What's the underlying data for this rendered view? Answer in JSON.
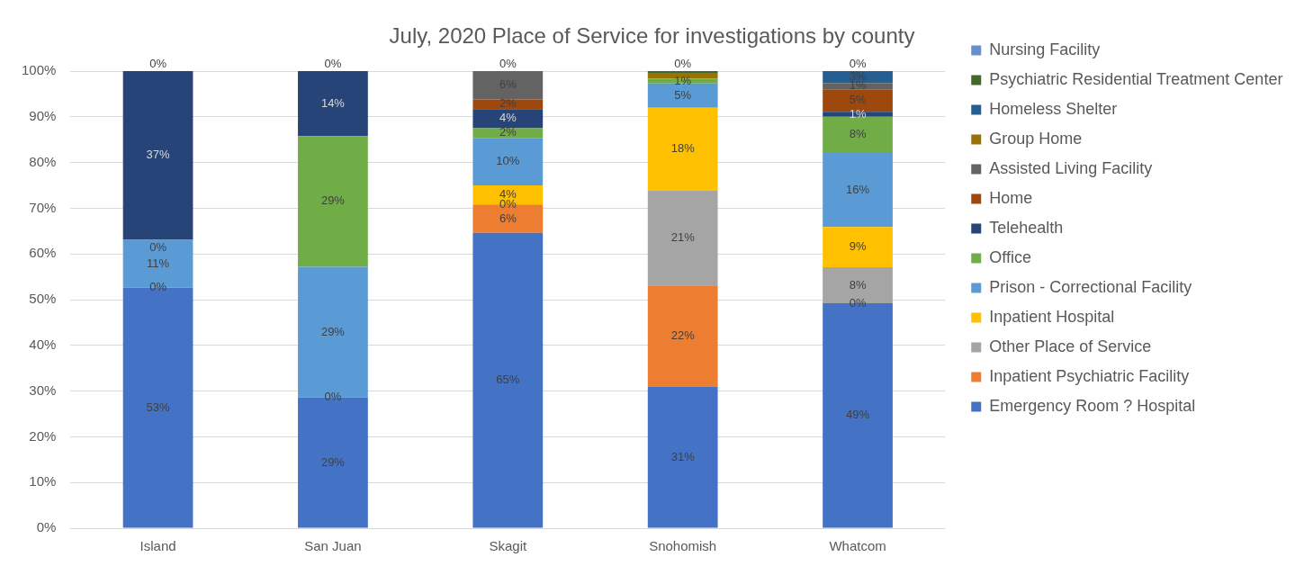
{
  "chart_data": {
    "type": "bar",
    "title": "July, 2020 Place of Service for investigations by county",
    "categories": [
      "Island",
      "San Juan",
      "Skagit",
      "Snohomish",
      "Whatcom"
    ],
    "stacked": true,
    "ylim": [
      0,
      100
    ],
    "yticks": [
      {
        "value": 0,
        "label": "0%"
      },
      {
        "value": 10,
        "label": "10%"
      },
      {
        "value": 20,
        "label": "20%"
      },
      {
        "value": 30,
        "label": "30%"
      },
      {
        "value": 40,
        "label": "40%"
      },
      {
        "value": 50,
        "label": "50%"
      },
      {
        "value": 60,
        "label": "60%"
      },
      {
        "value": 70,
        "label": "70%"
      },
      {
        "value": 80,
        "label": "80%"
      },
      {
        "value": 90,
        "label": "90%"
      },
      {
        "value": 100,
        "label": "100%"
      }
    ],
    "grid": "y",
    "legend": "right",
    "series": [
      {
        "name": "Emergency Room ? Hospital",
        "color": "#4472c4",
        "values": [
          52.6,
          28.6,
          64.6,
          31.0,
          49.2
        ],
        "value_labels": [
          "53%",
          "29%",
          "65%",
          "31%",
          "49%"
        ]
      },
      {
        "name": "Inpatient Psychiatric Facility",
        "color": "#ed7d31",
        "values": [
          0,
          0,
          6.2,
          22.1,
          0
        ],
        "value_labels": [
          null,
          null,
          "6%",
          "22%",
          null
        ]
      },
      {
        "name": "Other Place of Service",
        "color": "#a5a5a5",
        "values": [
          0,
          0,
          0,
          20.8,
          7.9
        ],
        "value_labels": [
          null,
          null,
          null,
          "21%",
          "8%"
        ]
      },
      {
        "name": "Inpatient Hospital",
        "color": "#ffc000",
        "values": [
          0,
          0,
          4.2,
          18.1,
          8.8
        ],
        "value_labels": [
          null,
          null,
          "4%",
          "18%",
          "9%"
        ]
      },
      {
        "name": "Prison - Correctional Facility",
        "color": "#5b9bd5",
        "values": [
          10.5,
          28.6,
          10.4,
          5.3,
          16.2
        ],
        "value_labels": [
          "11%",
          "29%",
          "10%",
          "5%",
          "16%"
        ]
      },
      {
        "name": "Office",
        "color": "#70ad47",
        "values": [
          0,
          28.6,
          2.1,
          1.1,
          7.9
        ],
        "value_labels": [
          null,
          "29%",
          "2%",
          "1%",
          "8%"
        ]
      },
      {
        "name": "Telehealth",
        "color": "#264478",
        "values": [
          36.9,
          14.2,
          4.2,
          0,
          1.1
        ],
        "value_labels": [
          "37%",
          "14%",
          "4%",
          null,
          "1%"
        ]
      },
      {
        "name": "Home",
        "color": "#9e480e",
        "values": [
          0,
          0,
          2.1,
          0,
          4.9
        ],
        "value_labels": [
          null,
          null,
          "2%",
          null,
          "5%"
        ]
      },
      {
        "name": "Assisted Living Facility",
        "color": "#636363",
        "values": [
          0,
          0,
          6.2,
          0,
          1.4
        ],
        "value_labels": [
          null,
          null,
          "6%",
          null,
          "1%"
        ]
      },
      {
        "name": "Group Home",
        "color": "#997300",
        "values": [
          0,
          0,
          0,
          1.2,
          0
        ],
        "value_labels": [
          null,
          null,
          null,
          null,
          null
        ]
      },
      {
        "name": "Homeless Shelter",
        "color": "#255e91",
        "values": [
          0,
          0,
          0,
          0,
          2.6
        ],
        "value_labels": [
          null,
          null,
          null,
          null,
          "3%"
        ]
      },
      {
        "name": "Psychiatric Residential Treatment Center",
        "color": "#43682b",
        "values": [
          0,
          0,
          0,
          0.4,
          0
        ],
        "value_labels": [
          null,
          null,
          null,
          null,
          null
        ]
      },
      {
        "name": "Nursing Facility",
        "color": "#698ed0",
        "values": [
          0,
          0,
          0,
          0,
          0
        ],
        "value_labels": [
          "0%",
          "0%",
          "0%",
          "0%",
          "0%"
        ]
      }
    ],
    "annotations": [
      {
        "text": "0%",
        "x": "Island",
        "y": 52.6
      },
      {
        "text": "0%",
        "x": "Island",
        "y": 63.1
      },
      {
        "text": "0%",
        "x": "San Juan",
        "y": 28.6
      },
      {
        "text": "0%",
        "x": "Skagit",
        "y": 70.8
      },
      {
        "text": "0%",
        "x": "Whatcom",
        "y": 49.2
      }
    ]
  }
}
